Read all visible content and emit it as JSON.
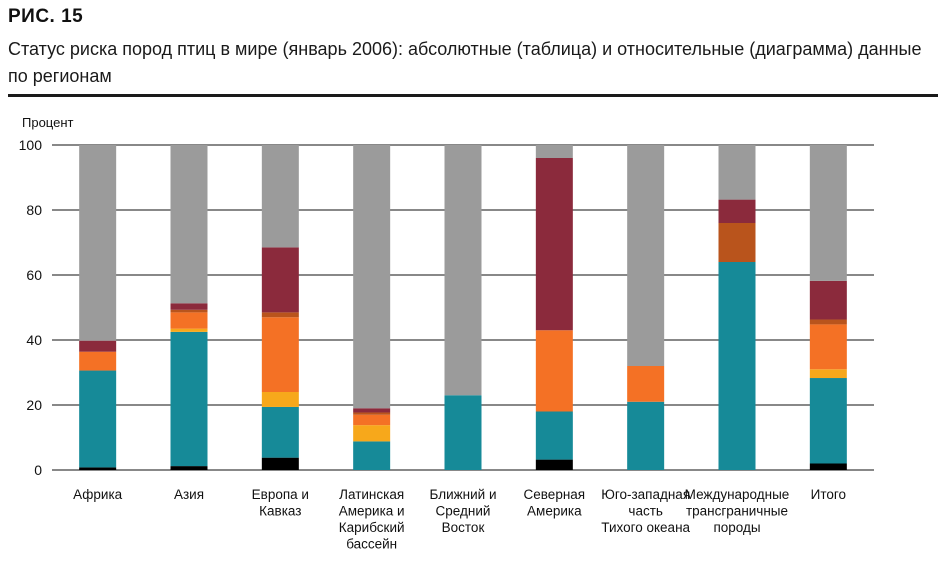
{
  "figure": {
    "label": "РИС.  15",
    "title": "Статус риска пород птиц в мире (январь 2006): абсолютные (таблица) и относительные (диаграмма) данные по регионам"
  },
  "chart_data": {
    "type": "bar",
    "stacked": true,
    "ylabel": "Процент",
    "ylim": [
      0,
      100
    ],
    "yticks": [
      0,
      20,
      40,
      60,
      80,
      100
    ],
    "grid": true,
    "categories": [
      [
        "Африка"
      ],
      [
        "Азия"
      ],
      [
        "Европа и",
        "Кавказ"
      ],
      [
        "Латинская",
        "Америка и",
        "Карибский",
        "бассейн"
      ],
      [
        "Ближний и",
        "Средний",
        "Восток"
      ],
      [
        "Северная",
        "Америка"
      ],
      [
        "Юго-западная",
        "часть",
        "Тихого океана"
      ],
      [
        "Международные",
        "трансграничные",
        "породы"
      ],
      [
        "Итого"
      ]
    ],
    "series": [
      {
        "color": "#000000",
        "values": [
          0.8,
          1.2,
          3.8,
          0,
          0,
          3.2,
          0,
          0,
          2.0
        ]
      },
      {
        "color": "#168a98",
        "values": [
          29.8,
          41.3,
          15.6,
          8.8,
          23.0,
          14.8,
          21.0,
          64.0,
          26.3
        ]
      },
      {
        "color": "#f7a81b",
        "values": [
          0,
          1.0,
          4.6,
          5.0,
          0,
          0,
          0,
          0,
          2.7
        ]
      },
      {
        "color": "#f47125",
        "values": [
          5.8,
          5.0,
          23.0,
          3.2,
          0,
          25.0,
          11.0,
          0,
          13.8
        ]
      },
      {
        "color": "#b9541c",
        "values": [
          0,
          0.8,
          1.5,
          0.7,
          0,
          0,
          0,
          12.0,
          1.5
        ]
      },
      {
        "color": "#8b2a3c",
        "values": [
          3.4,
          2.0,
          20.0,
          1.3,
          0,
          53.0,
          0,
          7.2,
          11.9
        ]
      },
      {
        "color": "#9b9b9b",
        "values": [
          60.2,
          48.7,
          31.5,
          81.0,
          77.0,
          4.0,
          68.0,
          16.8,
          41.8
        ]
      }
    ]
  }
}
